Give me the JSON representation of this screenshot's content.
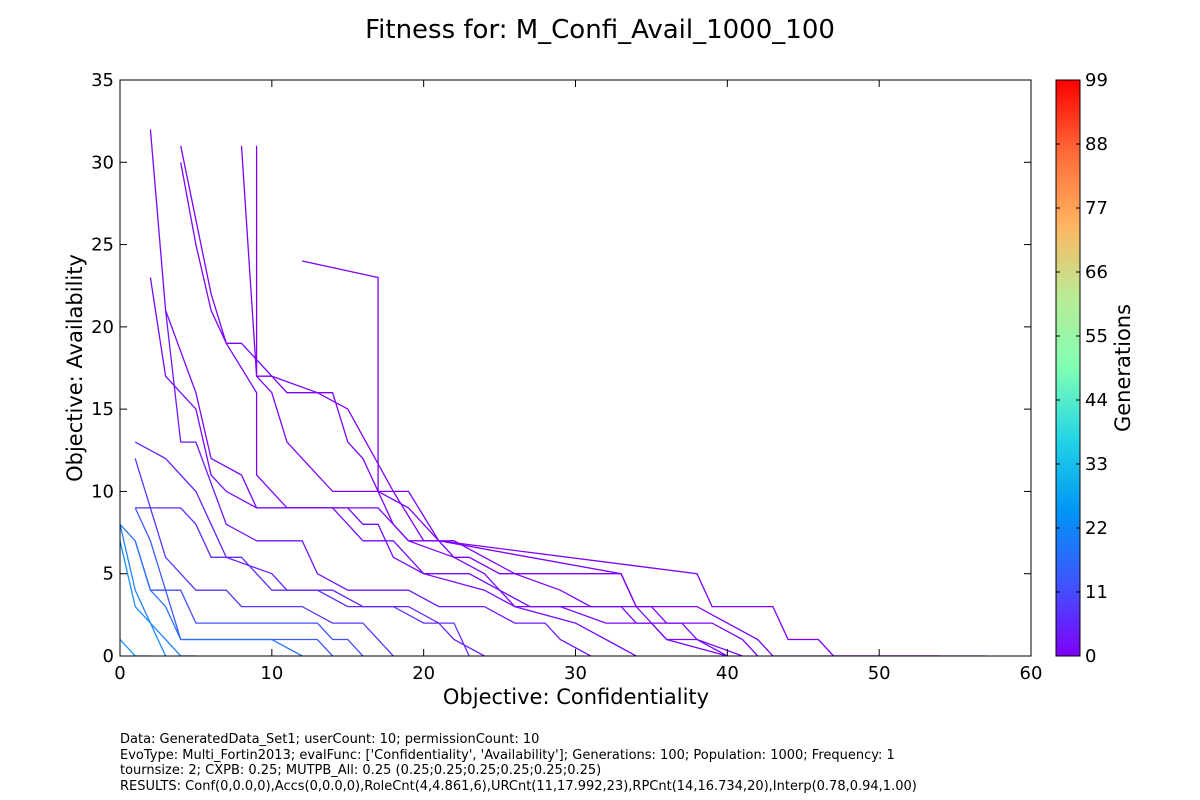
{
  "chart_data": {
    "type": "line",
    "title": "Fitness for: M_Confi_Avail_1000_100",
    "xlabel": "Objective: Confidentiality",
    "ylabel": "Objective: Availability",
    "xlim": [
      0,
      60
    ],
    "ylim": [
      0,
      35
    ],
    "xticks": [
      "0",
      "10",
      "20",
      "30",
      "40",
      "50",
      "60"
    ],
    "yticks": [
      "0",
      "5",
      "10",
      "15",
      "20",
      "25",
      "30",
      "35"
    ],
    "grid": false,
    "colorbar": {
      "label": "Generations",
      "range": [
        0,
        99
      ],
      "ticks": [
        "0",
        "11",
        "22",
        "33",
        "44",
        "55",
        "66",
        "77",
        "88",
        "99"
      ],
      "colormap": "rainbow"
    },
    "series": [
      {
        "generation": 0,
        "color": "#7f00ff",
        "points": [
          [
            12,
            24
          ],
          [
            17,
            23
          ],
          [
            17,
            10
          ],
          [
            18,
            10
          ],
          [
            20,
            7
          ],
          [
            21,
            7
          ],
          [
            22,
            6
          ],
          [
            23,
            6
          ],
          [
            25,
            5
          ],
          [
            28,
            5
          ],
          [
            33,
            5
          ],
          [
            34,
            3
          ],
          [
            37,
            3
          ],
          [
            38,
            3
          ],
          [
            40,
            2
          ],
          [
            42,
            1
          ],
          [
            43,
            0
          ],
          [
            47,
            0
          ],
          [
            57,
            0
          ]
        ]
      },
      {
        "generation": 0,
        "color": "#7f00ff",
        "points": [
          [
            9,
            31
          ],
          [
            9,
            17
          ],
          [
            10,
            17
          ],
          [
            13,
            16
          ],
          [
            15,
            15
          ],
          [
            18,
            10
          ],
          [
            19,
            10
          ],
          [
            21,
            7
          ],
          [
            38,
            5
          ],
          [
            39,
            3
          ],
          [
            43,
            3
          ],
          [
            44,
            1
          ],
          [
            46,
            1
          ],
          [
            47,
            0
          ],
          [
            54,
            0
          ]
        ]
      },
      {
        "generation": 1,
        "color": "#7d03ff",
        "points": [
          [
            8,
            31
          ],
          [
            9,
            17
          ],
          [
            10,
            16
          ],
          [
            11,
            13
          ],
          [
            14,
            10
          ],
          [
            17,
            10
          ],
          [
            19,
            9
          ],
          [
            21,
            7
          ],
          [
            33,
            5
          ],
          [
            34,
            3
          ],
          [
            35,
            3
          ],
          [
            36,
            2
          ],
          [
            39,
            2
          ],
          [
            41,
            1
          ],
          [
            42,
            0
          ]
        ]
      },
      {
        "generation": 1,
        "color": "#7d03ff",
        "points": [
          [
            4,
            31
          ],
          [
            6,
            22
          ],
          [
            7,
            19
          ],
          [
            8,
            19
          ],
          [
            10,
            17
          ],
          [
            11,
            16
          ],
          [
            14,
            16
          ],
          [
            15,
            13
          ],
          [
            16,
            12
          ],
          [
            17,
            10
          ],
          [
            18,
            8
          ],
          [
            19,
            7
          ],
          [
            22,
            7
          ],
          [
            24,
            6
          ],
          [
            26,
            5
          ],
          [
            29,
            4
          ],
          [
            31,
            3
          ],
          [
            33,
            3
          ],
          [
            34,
            2
          ],
          [
            37,
            2
          ],
          [
            38,
            1
          ],
          [
            41,
            0
          ]
        ]
      },
      {
        "generation": 2,
        "color": "#7b06ff",
        "points": [
          [
            4,
            30
          ],
          [
            5,
            25
          ],
          [
            6,
            21
          ],
          [
            7,
            19
          ],
          [
            9,
            16
          ],
          [
            9,
            11
          ],
          [
            11,
            9
          ],
          [
            14,
            9
          ],
          [
            17,
            9
          ],
          [
            19,
            7
          ],
          [
            22,
            6
          ],
          [
            24,
            5
          ],
          [
            26,
            3
          ],
          [
            29,
            3
          ],
          [
            32,
            2
          ],
          [
            35,
            2
          ],
          [
            36,
            1
          ],
          [
            40,
            0
          ]
        ]
      },
      {
        "generation": 3,
        "color": "#7908ff",
        "points": [
          [
            2,
            32
          ],
          [
            3,
            21
          ],
          [
            5,
            16
          ],
          [
            6,
            12
          ],
          [
            8,
            11
          ],
          [
            9,
            9
          ],
          [
            15,
            9
          ],
          [
            16,
            8
          ],
          [
            17,
            8
          ],
          [
            18,
            6
          ],
          [
            20,
            5
          ],
          [
            23,
            5
          ],
          [
            25,
            4
          ],
          [
            27,
            3
          ],
          [
            32,
            3
          ],
          [
            34,
            3
          ],
          [
            36,
            1
          ],
          [
            38,
            1
          ],
          [
            40,
            0
          ]
        ]
      },
      {
        "generation": 4,
        "color": "#770bff",
        "points": [
          [
            2,
            23
          ],
          [
            3,
            17
          ],
          [
            4,
            16
          ],
          [
            5,
            15
          ],
          [
            6,
            11
          ],
          [
            7,
            10
          ],
          [
            9,
            9
          ],
          [
            12,
            9
          ],
          [
            14,
            9
          ],
          [
            15,
            8
          ],
          [
            16,
            7
          ],
          [
            18,
            7
          ],
          [
            20,
            5
          ],
          [
            24,
            4
          ],
          [
            26,
            3
          ],
          [
            30,
            2
          ],
          [
            32,
            1
          ],
          [
            34,
            0
          ]
        ]
      },
      {
        "generation": 6,
        "color": "#6f17ff",
        "points": [
          [
            3,
            21
          ],
          [
            4,
            13
          ],
          [
            5,
            13
          ],
          [
            7,
            8
          ],
          [
            9,
            7
          ],
          [
            12,
            7
          ],
          [
            13,
            5
          ],
          [
            15,
            4
          ],
          [
            19,
            4
          ],
          [
            21,
            3
          ],
          [
            24,
            3
          ],
          [
            26,
            2
          ],
          [
            28,
            2
          ],
          [
            29,
            1
          ],
          [
            31,
            0
          ]
        ]
      },
      {
        "generation": 8,
        "color": "#6723ff",
        "points": [
          [
            1,
            13
          ],
          [
            3,
            12
          ],
          [
            4,
            11
          ],
          [
            5,
            10
          ],
          [
            6,
            8
          ],
          [
            7,
            6
          ],
          [
            10,
            5
          ],
          [
            11,
            4
          ],
          [
            14,
            4
          ],
          [
            16,
            3
          ],
          [
            19,
            3
          ],
          [
            21,
            2
          ],
          [
            22,
            1
          ],
          [
            24,
            0
          ]
        ]
      },
      {
        "generation": 10,
        "color": "#5f2fff",
        "points": [
          [
            1,
            9
          ],
          [
            4,
            9
          ],
          [
            5,
            8
          ],
          [
            6,
            6
          ],
          [
            8,
            6
          ],
          [
            10,
            4
          ],
          [
            13,
            4
          ],
          [
            15,
            3
          ],
          [
            18,
            3
          ],
          [
            20,
            2
          ],
          [
            22,
            2
          ],
          [
            23,
            0
          ]
        ]
      },
      {
        "generation": 12,
        "color": "#5439fe",
        "points": [
          [
            1,
            12
          ],
          [
            2,
            9
          ],
          [
            3,
            6
          ],
          [
            4,
            5
          ],
          [
            5,
            4
          ],
          [
            7,
            4
          ],
          [
            8,
            3
          ],
          [
            12,
            3
          ],
          [
            14,
            2
          ],
          [
            16,
            2
          ],
          [
            17,
            1
          ],
          [
            18,
            0
          ]
        ]
      },
      {
        "generation": 16,
        "color": "#4450fd",
        "points": [
          [
            1,
            7
          ],
          [
            2,
            4
          ],
          [
            4,
            4
          ],
          [
            5,
            2
          ],
          [
            10,
            2
          ],
          [
            13,
            2
          ],
          [
            14,
            1
          ],
          [
            15,
            1
          ],
          [
            16,
            0
          ]
        ]
      },
      {
        "generation": 18,
        "color": "#3c5afd",
        "points": [
          [
            1,
            9
          ],
          [
            2,
            7
          ],
          [
            3,
            4
          ],
          [
            4,
            1
          ],
          [
            8,
            1
          ],
          [
            13,
            1
          ],
          [
            14,
            0
          ]
        ]
      },
      {
        "generation": 22,
        "color": "#2c74fb",
        "points": [
          [
            0,
            8
          ],
          [
            1,
            7
          ],
          [
            2,
            4
          ],
          [
            3,
            3
          ],
          [
            4,
            1
          ],
          [
            6,
            1
          ],
          [
            10,
            1
          ],
          [
            12,
            0
          ]
        ]
      },
      {
        "generation": 24,
        "color": "#2483fa",
        "points": [
          [
            0,
            8
          ],
          [
            1,
            4
          ],
          [
            2,
            2
          ],
          [
            3,
            1
          ],
          [
            4,
            0
          ],
          [
            5,
            0
          ]
        ]
      },
      {
        "generation": 26,
        "color": "#1c8ff9",
        "points": [
          [
            0,
            7
          ],
          [
            1,
            3
          ],
          [
            2,
            2
          ],
          [
            3,
            0
          ]
        ]
      },
      {
        "generation": 28,
        "color": "#149af8",
        "points": [
          [
            0,
            1
          ],
          [
            1,
            0
          ],
          [
            2,
            0
          ]
        ]
      }
    ]
  },
  "footer": {
    "line1": "Data: GeneratedData_Set1; userCount: 10; permissionCount: 10",
    "line2": "EvoType: Multi_Fortin2013; evalFunc: ['Confidentiality', 'Availability']; Generations: 100; Population: 1000; Frequency: 1",
    "line3": "tournsize: 2; CXPB: 0.25; MUTPB_All: 0.25 (0.25;0.25;0.25;0.25;0.25;0.25)",
    "line4": "RESULTS: Conf(0,0.0,0),Accs(0,0.0,0),RoleCnt(4,4.861,6),URCnt(11,17.992,23),RPCnt(14,16.734,20),Interp(0.78,0.94,1.00)"
  }
}
